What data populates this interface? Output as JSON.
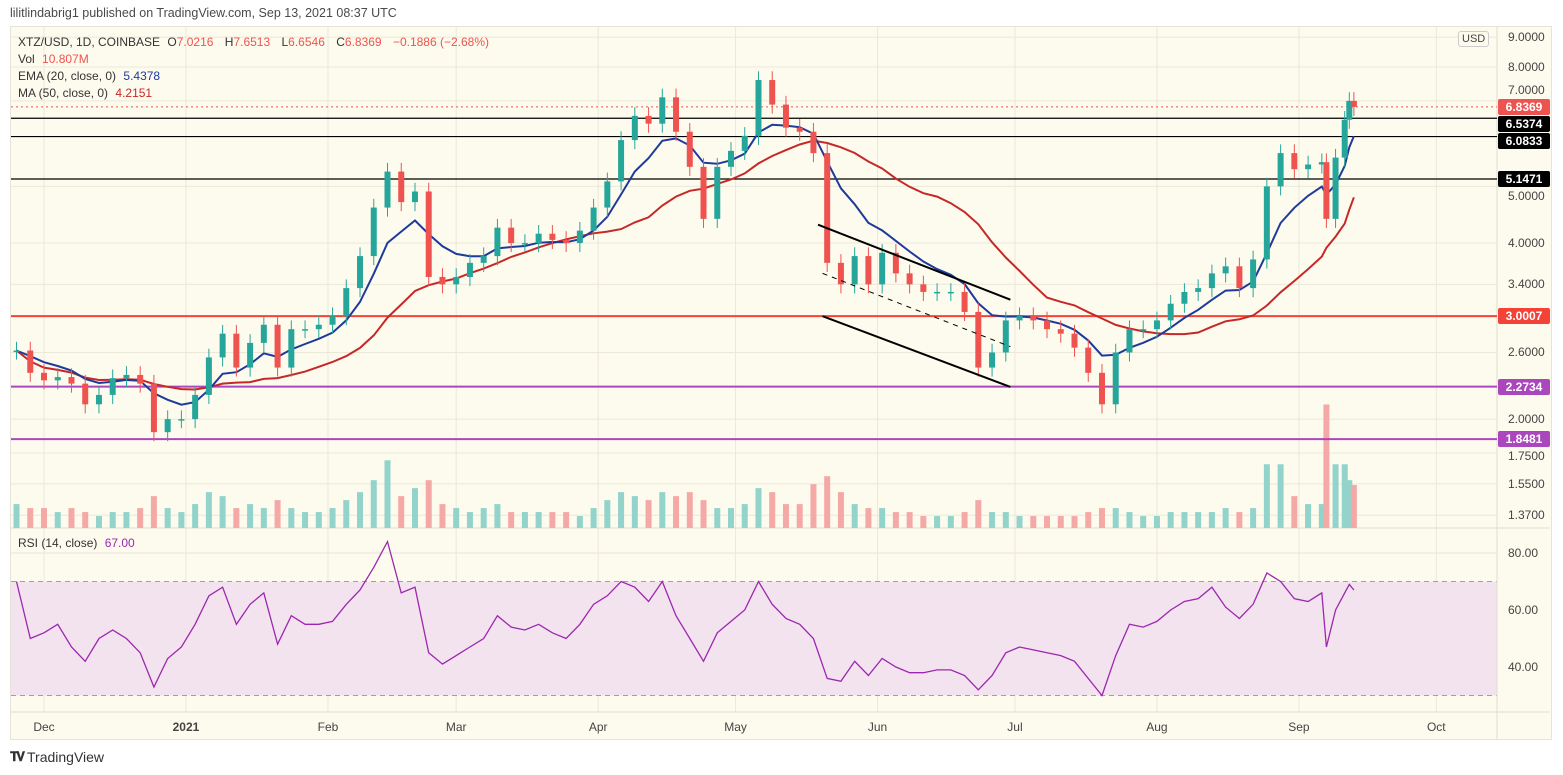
{
  "header": {
    "published": "lilitlindabrig1 published on TradingView.com, Sep 13, 2021 08:37 UTC"
  },
  "legend": {
    "symbol": "XTZ/USD, 1D, COINBASE",
    "open_label": "O",
    "open": "7.0216",
    "high_label": "H",
    "high": "7.6513",
    "low_label": "L",
    "low": "6.6546",
    "close_label": "C",
    "close": "6.8369",
    "change": "−0.1886 (−2.68%)",
    "vol_label": "Vol",
    "vol": "10.807M",
    "ema_label": "EMA (20, close, 0)",
    "ema": "5.4378",
    "ma_label": "MA (50, close, 0)",
    "ma": "4.2151",
    "rsi_label": "RSI (14, close)",
    "rsi": "67.00"
  },
  "currency": "USD",
  "price_tags": [
    {
      "label": "6.8369",
      "value": 6.8369,
      "color": "#ef5350",
      "line": "dotted"
    },
    {
      "label": "6.5374",
      "value": 6.5374,
      "color": "#000000",
      "line": "solid"
    },
    {
      "label": "6.0833",
      "value": 6.0833,
      "color": "#000000",
      "line": "solid"
    },
    {
      "label": "5.1471",
      "value": 5.1471,
      "color": "#000000",
      "line": "solid"
    },
    {
      "label": "3.0007",
      "value": 3.0007,
      "color": "#f44336",
      "line": "solid"
    },
    {
      "label": "2.2734",
      "value": 2.2734,
      "color": "#ab47bc",
      "line": "solid"
    },
    {
      "label": "1.8481",
      "value": 1.8481,
      "color": "#ab47bc",
      "line": "solid"
    }
  ],
  "price_ticks": [
    "9.0000",
    "8.0000",
    "7.0000",
    "5.0000",
    "4.0000",
    "3.4000",
    "2.6000",
    "2.0000",
    "1.7500",
    "1.5500",
    "1.3700"
  ],
  "rsi_ticks": [
    "80.00",
    "60.00",
    "40.00"
  ],
  "time_labels": [
    {
      "label": "Dec",
      "date": "2020-12-01",
      "bold": false
    },
    {
      "label": "2021",
      "date": "2021-01-01",
      "bold": true
    },
    {
      "label": "Feb",
      "date": "2021-02-01",
      "bold": false
    },
    {
      "label": "Mar",
      "date": "2021-03-01",
      "bold": false
    },
    {
      "label": "Apr",
      "date": "2021-04-01",
      "bold": false
    },
    {
      "label": "May",
      "date": "2021-05-01",
      "bold": false
    },
    {
      "label": "Jun",
      "date": "2021-06-01",
      "bold": false
    },
    {
      "label": "Jul",
      "date": "2021-07-01",
      "bold": false
    },
    {
      "label": "Aug",
      "date": "2021-08-01",
      "bold": false
    },
    {
      "label": "Sep",
      "date": "2021-09-01",
      "bold": false
    },
    {
      "label": "Oct",
      "date": "2021-10-01",
      "bold": false
    }
  ],
  "footer": {
    "brand": "TradingView"
  },
  "colors": {
    "up": "#26a69a",
    "down": "#ef5350",
    "ema": "#1e3a9a",
    "ma": "#c62828",
    "rsi": "#9c27b0",
    "background": "#fdfbee"
  },
  "chart_data": {
    "type": "candlestick",
    "price_scale": "log",
    "ylim": [
      1.35,
      9.2
    ],
    "rsi_range": [
      20,
      90
    ],
    "rsi_bands": [
      70,
      30
    ],
    "grid": true,
    "ema_period": 20,
    "ma_period": 50,
    "dates": [
      "2020-11-25",
      "2020-11-28",
      "2020-12-01",
      "2020-12-04",
      "2020-12-07",
      "2020-12-10",
      "2020-12-13",
      "2020-12-16",
      "2020-12-19",
      "2020-12-22",
      "2020-12-25",
      "2020-12-28",
      "2020-12-31",
      "2021-01-03",
      "2021-01-06",
      "2021-01-09",
      "2021-01-12",
      "2021-01-15",
      "2021-01-18",
      "2021-01-21",
      "2021-01-24",
      "2021-01-27",
      "2021-01-30",
      "2021-02-02",
      "2021-02-05",
      "2021-02-08",
      "2021-02-11",
      "2021-02-14",
      "2021-02-17",
      "2021-02-20",
      "2021-02-23",
      "2021-02-26",
      "2021-03-01",
      "2021-03-04",
      "2021-03-07",
      "2021-03-10",
      "2021-03-13",
      "2021-03-16",
      "2021-03-19",
      "2021-03-22",
      "2021-03-25",
      "2021-03-28",
      "2021-03-31",
      "2021-04-03",
      "2021-04-06",
      "2021-04-09",
      "2021-04-12",
      "2021-04-15",
      "2021-04-18",
      "2021-04-21",
      "2021-04-24",
      "2021-04-27",
      "2021-04-30",
      "2021-05-03",
      "2021-05-06",
      "2021-05-09",
      "2021-05-12",
      "2021-05-15",
      "2021-05-18",
      "2021-05-21",
      "2021-05-24",
      "2021-05-27",
      "2021-05-30",
      "2021-06-02",
      "2021-06-05",
      "2021-06-08",
      "2021-06-11",
      "2021-06-14",
      "2021-06-17",
      "2021-06-20",
      "2021-06-23",
      "2021-06-26",
      "2021-06-29",
      "2021-07-02",
      "2021-07-05",
      "2021-07-08",
      "2021-07-11",
      "2021-07-14",
      "2021-07-17",
      "2021-07-20",
      "2021-07-23",
      "2021-07-26",
      "2021-07-29",
      "2021-08-01",
      "2021-08-04",
      "2021-08-07",
      "2021-08-10",
      "2021-08-13",
      "2021-08-16",
      "2021-08-19",
      "2021-08-22",
      "2021-08-25",
      "2021-08-28",
      "2021-08-31",
      "2021-09-03",
      "2021-09-06",
      "2021-09-07",
      "2021-09-09",
      "2021-09-11",
      "2021-09-12",
      "2021-09-13"
    ],
    "close": [
      2.62,
      2.4,
      2.33,
      2.36,
      2.3,
      2.12,
      2.2,
      2.35,
      2.38,
      2.3,
      1.9,
      2.0,
      2.0,
      2.2,
      2.55,
      2.8,
      2.45,
      2.7,
      2.9,
      2.45,
      2.85,
      2.85,
      2.9,
      3.0,
      3.35,
      3.8,
      4.6,
      5.3,
      4.7,
      4.9,
      3.5,
      3.4,
      3.5,
      3.7,
      3.8,
      4.25,
      4.0,
      4.0,
      4.15,
      4.05,
      4.0,
      4.2,
      4.6,
      5.1,
      6.0,
      6.6,
      6.4,
      7.1,
      6.2,
      5.4,
      4.4,
      5.4,
      5.75,
      6.1,
      7.6,
      6.9,
      6.3,
      6.2,
      5.7,
      3.7,
      3.4,
      3.8,
      3.4,
      3.85,
      3.55,
      3.4,
      3.3,
      3.3,
      3.3,
      3.05,
      2.45,
      2.6,
      2.95,
      3.0,
      2.95,
      2.85,
      2.8,
      2.65,
      2.4,
      2.12,
      2.6,
      2.85,
      2.85,
      2.95,
      3.15,
      3.3,
      3.35,
      3.55,
      3.65,
      3.35,
      3.75,
      5.0,
      5.7,
      5.35,
      5.45,
      5.5,
      4.4,
      5.6,
      6.5,
      7.0,
      6.8369
    ],
    "volume_millions": [
      6,
      5,
      5,
      4,
      5,
      4,
      3,
      4,
      4,
      5,
      8,
      5,
      4,
      6,
      9,
      8,
      5,
      6,
      5,
      7,
      5,
      4,
      4,
      5,
      7,
      9,
      12,
      17,
      8,
      10,
      12,
      6,
      5,
      4,
      5,
      6,
      4,
      4,
      4,
      4,
      4,
      3,
      5,
      7,
      9,
      8,
      7,
      9,
      8,
      9,
      7,
      5,
      5,
      6,
      10,
      9,
      6,
      6,
      11,
      13,
      9,
      6,
      5,
      5,
      4,
      4,
      3,
      3,
      3,
      4,
      7,
      4,
      4,
      3,
      3,
      3,
      3,
      3,
      4,
      5,
      5,
      4,
      3,
      3,
      4,
      4,
      4,
      4,
      5,
      4,
      5,
      16,
      16,
      8,
      6,
      6,
      31,
      16,
      16,
      12,
      10.807
    ],
    "rsi": [
      70,
      50,
      52,
      55,
      47,
      42,
      50,
      53,
      50,
      45,
      33,
      43,
      47,
      55,
      65,
      68,
      55,
      62,
      66,
      48,
      58,
      55,
      55,
      56,
      62,
      67,
      75,
      84,
      66,
      68,
      45,
      41,
      44,
      47,
      50,
      58,
      54,
      53,
      55,
      52,
      50,
      55,
      62,
      65,
      70,
      68,
      63,
      70,
      58,
      50,
      42,
      52,
      56,
      60,
      70,
      62,
      57,
      55,
      50,
      36,
      35,
      42,
      37,
      43,
      40,
      38,
      38,
      39,
      39,
      37,
      32,
      37,
      45,
      47,
      46,
      45,
      44,
      42,
      36,
      30,
      44,
      55,
      54,
      56,
      60,
      63,
      64,
      68,
      61,
      57,
      62,
      73,
      70,
      64,
      63,
      66,
      47,
      60,
      66,
      69,
      67
    ],
    "trendlines": [
      {
        "name": "channel-upper",
        "from": [
          "2021-05-19",
          4.3
        ],
        "to": [
          "2021-06-30",
          3.2
        ],
        "style": "solid"
      },
      {
        "name": "channel-mid",
        "from": [
          "2021-05-20",
          3.55
        ],
        "to": [
          "2021-06-30",
          2.66
        ],
        "style": "dashed"
      },
      {
        "name": "channel-lower",
        "from": [
          "2021-05-20",
          3.0
        ],
        "to": [
          "2021-06-30",
          2.27
        ],
        "style": "solid"
      }
    ]
  }
}
